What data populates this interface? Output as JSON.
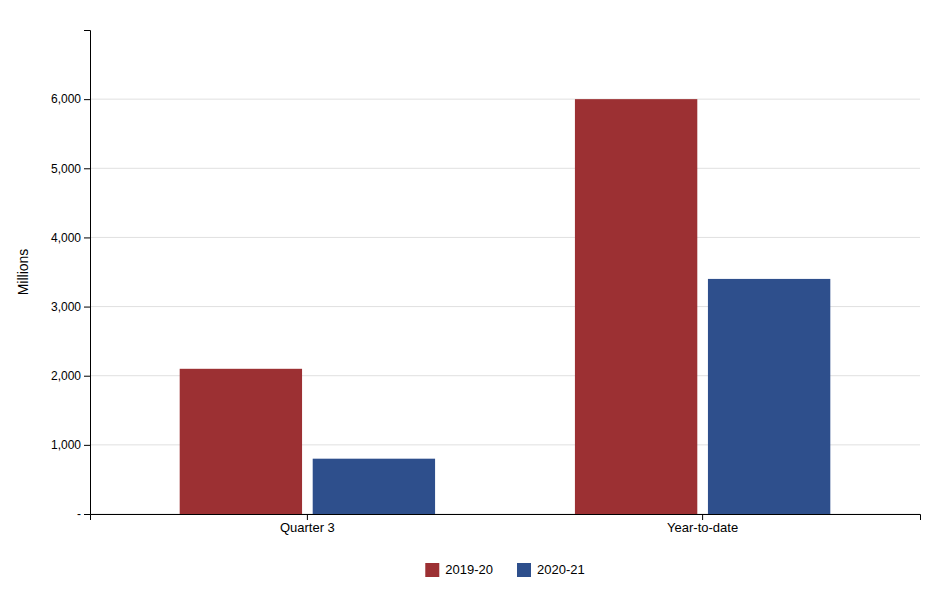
{
  "chart_data": {
    "type": "bar",
    "categories": [
      "Quarter 3",
      "Year-to-date"
    ],
    "series": [
      {
        "name": "2019-20",
        "color": "#9C3033",
        "values": [
          2100,
          6000
        ]
      },
      {
        "name": "2020-21",
        "color": "#2E4F8C",
        "values": [
          800,
          3400
        ]
      }
    ],
    "ylabel": "Millions",
    "ylim": [
      0,
      7000
    ],
    "yticks": [
      {
        "value": 0,
        "label": "-"
      },
      {
        "value": 1000,
        "label": "1,000"
      },
      {
        "value": 2000,
        "label": "2,000"
      },
      {
        "value": 3000,
        "label": "3,000"
      },
      {
        "value": 4000,
        "label": "4,000"
      },
      {
        "value": 5000,
        "label": "5,000"
      },
      {
        "value": 6000,
        "label": "6,000"
      }
    ],
    "grid": true,
    "legend": "bottom"
  }
}
